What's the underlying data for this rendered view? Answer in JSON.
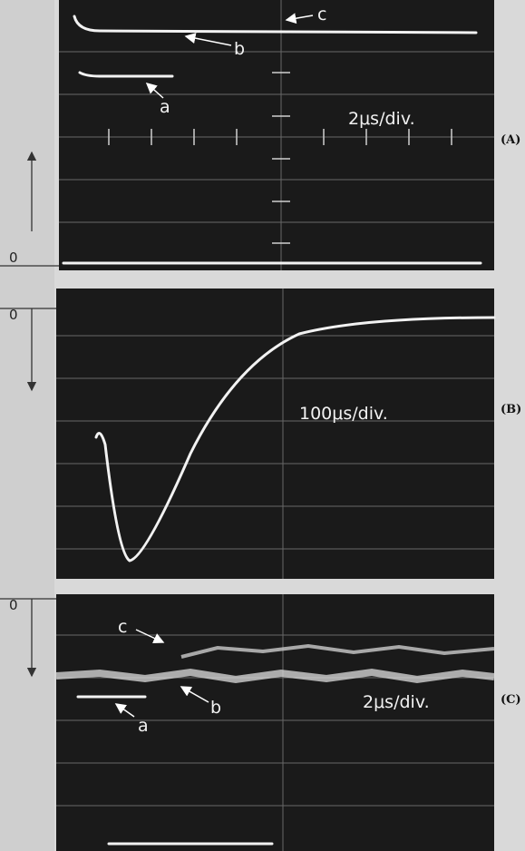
{
  "panels": [
    {
      "label": "(A)",
      "timebase": "2μs/div.",
      "zero": "0",
      "traces": [
        "a",
        "b",
        "c"
      ]
    },
    {
      "label": "(B)",
      "timebase": "100μs/div.",
      "zero": "0"
    },
    {
      "label": "(C)",
      "timebase": "2μs/div.",
      "zero": "0",
      "traces": [
        "a",
        "b",
        "c"
      ]
    }
  ]
}
